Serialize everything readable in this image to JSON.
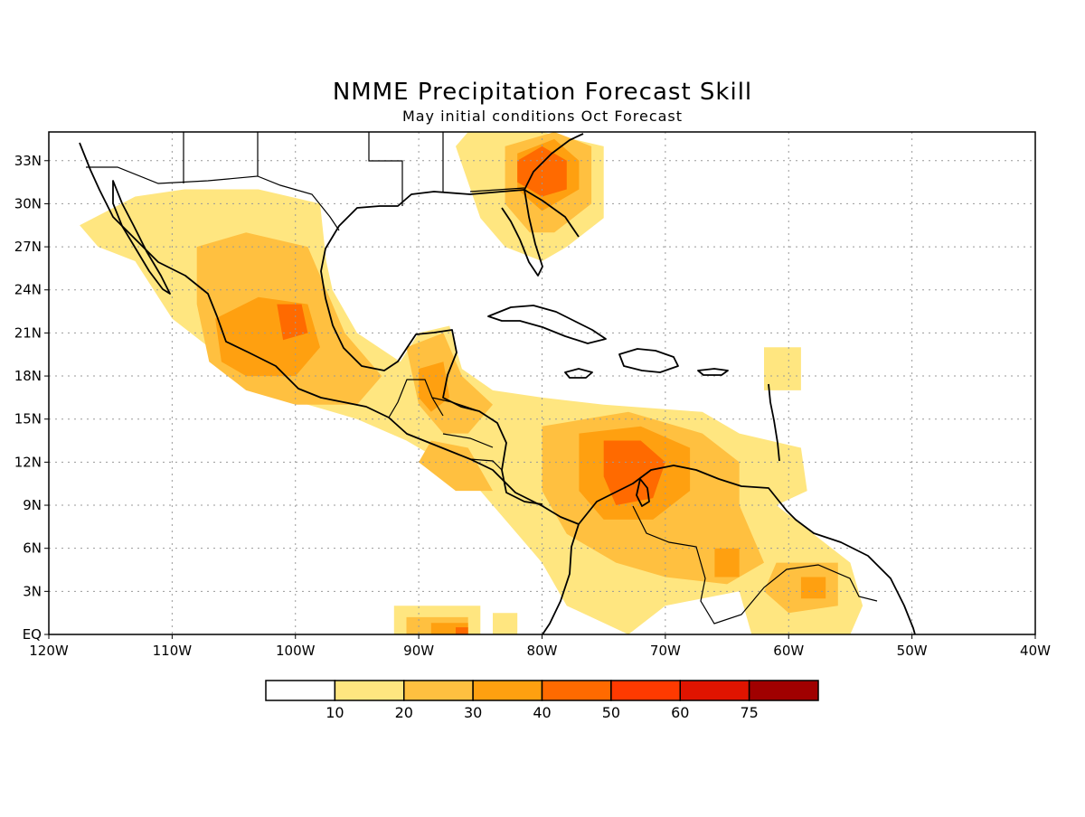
{
  "title": "NMME Precipitation Forecast Skill",
  "subtitle": "May initial conditions  Oct Forecast",
  "map": {
    "lon_range": [
      -120,
      -40
    ],
    "lat_range": [
      0,
      35
    ],
    "x_ticks": [
      {
        "lon": -120,
        "label": "120W"
      },
      {
        "lon": -110,
        "label": "110W"
      },
      {
        "lon": -100,
        "label": "100W"
      },
      {
        "lon": -90,
        "label": "90W"
      },
      {
        "lon": -80,
        "label": "80W"
      },
      {
        "lon": -70,
        "label": "70W"
      },
      {
        "lon": -60,
        "label": "60W"
      },
      {
        "lon": -50,
        "label": "50W"
      },
      {
        "lon": -40,
        "label": "40W"
      }
    ],
    "y_ticks": [
      {
        "lat": 0,
        "label": "EQ"
      },
      {
        "lat": 3,
        "label": "3N"
      },
      {
        "lat": 6,
        "label": "6N"
      },
      {
        "lat": 9,
        "label": "9N"
      },
      {
        "lat": 12,
        "label": "12N"
      },
      {
        "lat": 15,
        "label": "15N"
      },
      {
        "lat": 18,
        "label": "18N"
      },
      {
        "lat": 21,
        "label": "21N"
      },
      {
        "lat": 24,
        "label": "24N"
      },
      {
        "lat": 27,
        "label": "27N"
      },
      {
        "lat": 30,
        "label": "30N"
      },
      {
        "lat": 33,
        "label": "33N"
      }
    ],
    "grid": true
  },
  "legend": {
    "levels": [
      {
        "color": "#ffffff"
      },
      {
        "color": "#ffe680",
        "label": "10"
      },
      {
        "color": "#ffc040",
        "label": "20"
      },
      {
        "color": "#ffa010",
        "label": "30"
      },
      {
        "color": "#ff6a00",
        "label": "40"
      },
      {
        "color": "#ff3a00",
        "label": "50"
      },
      {
        "color": "#e01400",
        "label": "60"
      },
      {
        "color": "#a00000",
        "label": "75"
      }
    ]
  },
  "skill_regions": [
    {
      "level": 1,
      "pts": [
        [
          -117.5,
          28.5
        ],
        [
          -113,
          30.5
        ],
        [
          -109,
          31
        ],
        [
          -103,
          31
        ],
        [
          -98,
          30
        ],
        [
          -97.5,
          26
        ],
        [
          -97,
          24
        ],
        [
          -95,
          21
        ],
        [
          -91.5,
          19
        ],
        [
          -90,
          21
        ],
        [
          -87.5,
          21.5
        ],
        [
          -86.5,
          18.5
        ],
        [
          -84,
          17
        ],
        [
          -80,
          16.5
        ],
        [
          -75,
          16
        ],
        [
          -67,
          15.5
        ],
        [
          -64,
          14
        ],
        [
          -59,
          13
        ],
        [
          -58.5,
          10
        ],
        [
          -61,
          9
        ],
        [
          -58,
          7
        ],
        [
          -55,
          5
        ],
        [
          -54,
          2
        ],
        [
          -55,
          0
        ],
        [
          -63,
          0
        ],
        [
          -64,
          3
        ],
        [
          -70,
          2
        ],
        [
          -73,
          0
        ],
        [
          -78,
          2
        ],
        [
          -80,
          5
        ],
        [
          -82,
          7
        ],
        [
          -86,
          11
        ],
        [
          -91,
          13.5
        ],
        [
          -95,
          15
        ],
        [
          -99,
          16
        ],
        [
          -103,
          17
        ],
        [
          -107,
          20
        ],
        [
          -110,
          22
        ],
        [
          -113,
          26
        ],
        [
          -116,
          27
        ]
      ]
    },
    {
      "level": 1,
      "pts": [
        [
          -87,
          34
        ],
        [
          -85,
          29
        ],
        [
          -83,
          27
        ],
        [
          -80,
          26
        ],
        [
          -78,
          27
        ],
        [
          -75,
          29
        ],
        [
          -75,
          34
        ],
        [
          -80,
          35
        ],
        [
          -86,
          35
        ]
      ]
    },
    {
      "level": 1,
      "pts": [
        [
          -92,
          2
        ],
        [
          -85,
          2
        ],
        [
          -85,
          0
        ],
        [
          -92,
          0
        ]
      ]
    },
    {
      "level": 1,
      "pts": [
        [
          -84,
          1.5
        ],
        [
          -82,
          1.5
        ],
        [
          -82,
          0
        ],
        [
          -84,
          0
        ]
      ]
    },
    {
      "level": 1,
      "pts": [
        [
          -62,
          20
        ],
        [
          -59,
          20
        ],
        [
          -59,
          17
        ],
        [
          -62,
          17
        ]
      ]
    },
    {
      "level": 2,
      "pts": [
        [
          -108,
          27
        ],
        [
          -104,
          28
        ],
        [
          -99,
          27
        ],
        [
          -97.5,
          24
        ],
        [
          -96,
          21
        ],
        [
          -93,
          18
        ],
        [
          -95,
          16
        ],
        [
          -100,
          16
        ],
        [
          -104,
          17
        ],
        [
          -107,
          19
        ],
        [
          -108,
          23
        ]
      ]
    },
    {
      "level": 2,
      "pts": [
        [
          -91,
          20
        ],
        [
          -88,
          21
        ],
        [
          -86.5,
          18
        ],
        [
          -84,
          16
        ],
        [
          -86,
          14
        ],
        [
          -88,
          14
        ],
        [
          -90,
          16
        ]
      ]
    },
    {
      "level": 2,
      "pts": [
        [
          -83,
          34
        ],
        [
          -79,
          35
        ],
        [
          -76,
          34
        ],
        [
          -76,
          30
        ],
        [
          -79,
          28
        ],
        [
          -81,
          28
        ],
        [
          -83,
          30
        ]
      ]
    },
    {
      "level": 2,
      "pts": [
        [
          -80,
          14.5
        ],
        [
          -73,
          15.5
        ],
        [
          -67,
          14
        ],
        [
          -64,
          12
        ],
        [
          -64,
          9
        ],
        [
          -62,
          5
        ],
        [
          -65,
          3.5
        ],
        [
          -70,
          4
        ],
        [
          -74,
          5
        ],
        [
          -78,
          7
        ],
        [
          -80,
          10
        ]
      ]
    },
    {
      "level": 2,
      "pts": [
        [
          -89,
          13.5
        ],
        [
          -86,
          13
        ],
        [
          -84,
          10
        ],
        [
          -87,
          10
        ],
        [
          -90,
          12
        ]
      ]
    },
    {
      "level": 2,
      "pts": [
        [
          -61,
          5
        ],
        [
          -56,
          5
        ],
        [
          -56,
          2
        ],
        [
          -60,
          1.5
        ],
        [
          -62,
          3
        ]
      ]
    },
    {
      "level": 2,
      "pts": [
        [
          -91,
          1.2
        ],
        [
          -86,
          1.2
        ],
        [
          -86,
          0
        ],
        [
          -91,
          0
        ]
      ]
    },
    {
      "level": 3,
      "pts": [
        [
          -106.5,
          22
        ],
        [
          -103,
          23.5
        ],
        [
          -99,
          23
        ],
        [
          -98,
          20
        ],
        [
          -100,
          18
        ],
        [
          -104,
          18
        ],
        [
          -106,
          19
        ]
      ]
    },
    {
      "level": 3,
      "pts": [
        [
          -90,
          18.5
        ],
        [
          -88,
          19
        ],
        [
          -87.5,
          16.5
        ],
        [
          -89,
          15.5
        ],
        [
          -90,
          16.5
        ]
      ]
    },
    {
      "level": 3,
      "pts": [
        [
          -82,
          33.5
        ],
        [
          -79,
          34.5
        ],
        [
          -77,
          33
        ],
        [
          -77,
          31
        ],
        [
          -80,
          29.5
        ],
        [
          -82,
          31
        ]
      ]
    },
    {
      "level": 3,
      "pts": [
        [
          -77,
          14
        ],
        [
          -72,
          14.5
        ],
        [
          -68,
          13
        ],
        [
          -68,
          10
        ],
        [
          -71,
          8
        ],
        [
          -75,
          8
        ],
        [
          -77,
          10
        ]
      ]
    },
    {
      "level": 3,
      "pts": [
        [
          -66,
          6
        ],
        [
          -64,
          6
        ],
        [
          -64,
          4
        ],
        [
          -66,
          4
        ]
      ]
    },
    {
      "level": 3,
      "pts": [
        [
          -59,
          4
        ],
        [
          -57,
          4
        ],
        [
          -57,
          2.5
        ],
        [
          -59,
          2.5
        ]
      ]
    },
    {
      "level": 3,
      "pts": [
        [
          -89,
          0.8
        ],
        [
          -86,
          0.8
        ],
        [
          -86,
          0
        ],
        [
          -89,
          0
        ]
      ]
    },
    {
      "level": 4,
      "pts": [
        [
          -101.5,
          23
        ],
        [
          -99.5,
          23
        ],
        [
          -99,
          21
        ],
        [
          -101,
          20.5
        ]
      ]
    },
    {
      "level": 4,
      "pts": [
        [
          -82,
          33
        ],
        [
          -80,
          34
        ],
        [
          -78,
          33
        ],
        [
          -78,
          31
        ],
        [
          -80,
          30.5
        ],
        [
          -82,
          31.5
        ]
      ]
    },
    {
      "level": 4,
      "pts": [
        [
          -75,
          13.5
        ],
        [
          -72,
          13.5
        ],
        [
          -70,
          12
        ],
        [
          -71,
          9.5
        ],
        [
          -74,
          9
        ],
        [
          -75,
          11
        ]
      ]
    },
    {
      "level": 4,
      "pts": [
        [
          -87,
          0.5
        ],
        [
          -86,
          0.5
        ],
        [
          -86,
          0
        ],
        [
          -87,
          0
        ]
      ]
    }
  ]
}
